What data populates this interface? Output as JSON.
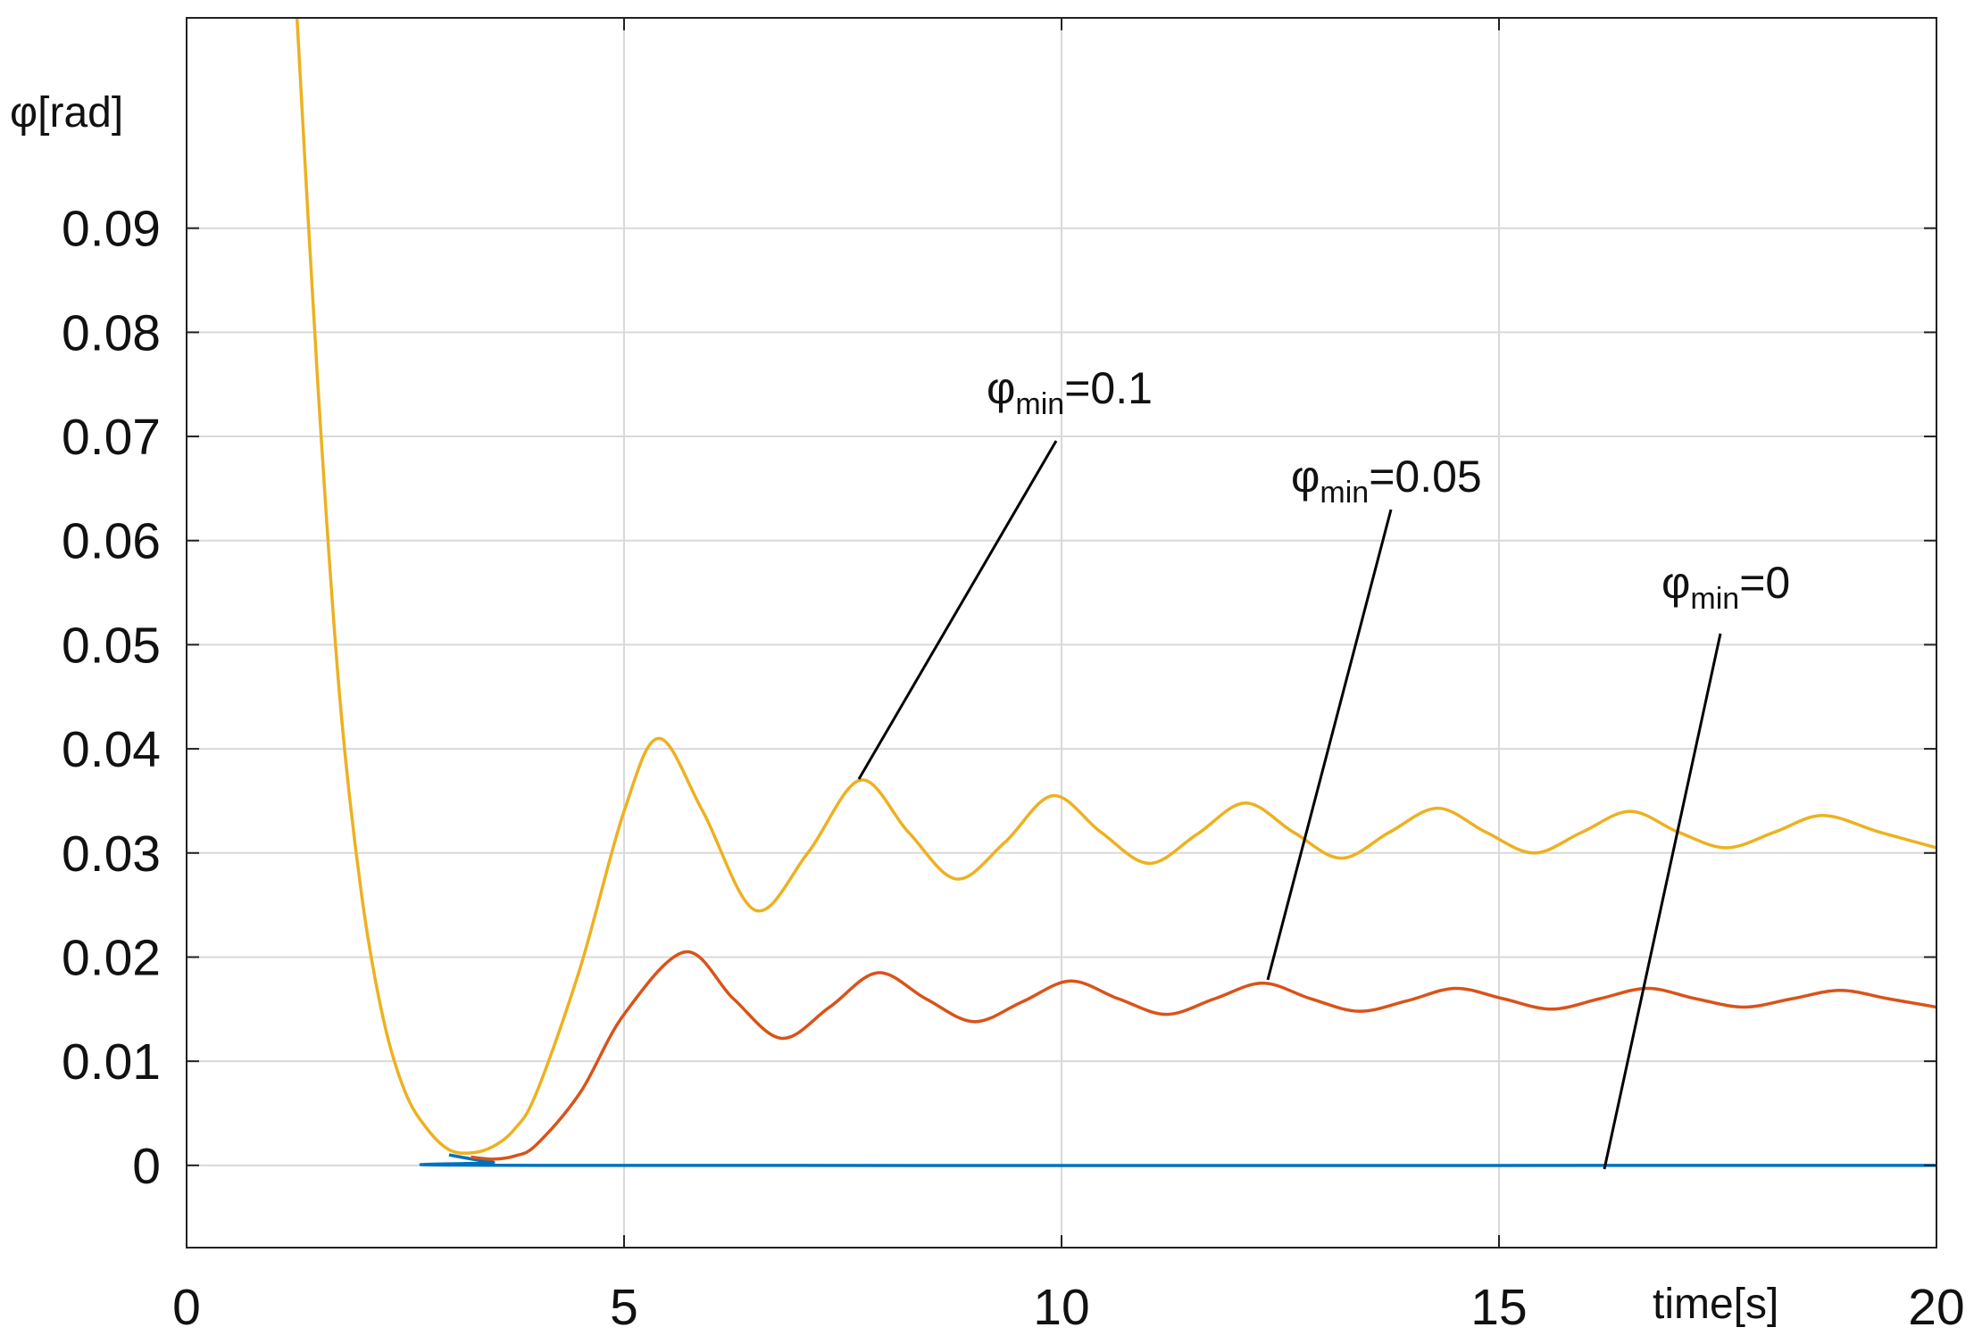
{
  "chart_data": {
    "type": "line",
    "ylabel": "φ[rad]",
    "xlabel": "time[s]",
    "xlim": [
      0,
      20
    ],
    "xticks": [
      0,
      5,
      10,
      15,
      20
    ],
    "ylim": [
      -0.0079,
      0.1102
    ],
    "yticks": [
      0,
      0.01,
      0.02,
      0.03,
      0.04,
      0.05,
      0.06,
      0.07,
      0.08,
      0.09
    ],
    "grid": true,
    "series": [
      {
        "name": "φmin=0.1",
        "color": "#edb120",
        "x": [
          1.25,
          1.5,
          1.75,
          2,
          2.25,
          2.5,
          2.75,
          3,
          3.25,
          3.5,
          3.75,
          4,
          4.5,
          5,
          5.4,
          5.9,
          6.5,
          7.1,
          7.7,
          8.25,
          8.8,
          9.35,
          9.9,
          10.45,
          11,
          11.55,
          12.1,
          12.65,
          13.2,
          13.75,
          14.3,
          14.85,
          15.4,
          15.95,
          16.5,
          17.05,
          17.6,
          18.15,
          18.7,
          19.35,
          20
        ],
        "values": [
          0.112,
          0.075,
          0.045,
          0.026,
          0.014,
          0.007,
          0.0035,
          0.0015,
          0.0012,
          0.0018,
          0.0035,
          0.007,
          0.019,
          0.034,
          0.041,
          0.034,
          0.0245,
          0.03,
          0.037,
          0.032,
          0.0275,
          0.031,
          0.0355,
          0.032,
          0.029,
          0.0318,
          0.0348,
          0.032,
          0.0295,
          0.032,
          0.0343,
          0.032,
          0.03,
          0.032,
          0.034,
          0.032,
          0.0305,
          0.032,
          0.0336,
          0.032,
          0.0305
        ]
      },
      {
        "name": "φmin=0.05",
        "color": "#d95319",
        "x": [
          3.25,
          3.5,
          3.75,
          4,
          4.5,
          5,
          5.7,
          6.25,
          6.8,
          7.35,
          7.9,
          8.45,
          9,
          9.55,
          10.1,
          10.65,
          11.2,
          11.75,
          12.3,
          12.85,
          13.4,
          13.95,
          14.5,
          15.05,
          15.6,
          16.15,
          16.7,
          17.25,
          17.8,
          18.35,
          18.9,
          19.45,
          20
        ],
        "values": [
          0.0008,
          0.0006,
          0.0009,
          0.002,
          0.007,
          0.0145,
          0.0205,
          0.016,
          0.0122,
          0.0152,
          0.0185,
          0.016,
          0.0138,
          0.0157,
          0.0177,
          0.016,
          0.0145,
          0.016,
          0.0175,
          0.016,
          0.0148,
          0.0158,
          0.017,
          0.016,
          0.015,
          0.016,
          0.017,
          0.016,
          0.0152,
          0.016,
          0.0168,
          0.016,
          0.0152
        ]
      },
      {
        "name": "φmin=0",
        "color": "#0072bd",
        "x": [
          3,
          3.5,
          4,
          20
        ],
        "values": [
          0.001,
          0.0003,
          0,
          0
        ]
      }
    ],
    "annotations": [
      {
        "symbol": "φ",
        "subscript": "min",
        "text": "=0.1"
      },
      {
        "symbol": "φ",
        "subscript": "min",
        "text": "=0.05"
      },
      {
        "symbol": "φ",
        "subscript": "min",
        "text": "=0"
      }
    ]
  }
}
